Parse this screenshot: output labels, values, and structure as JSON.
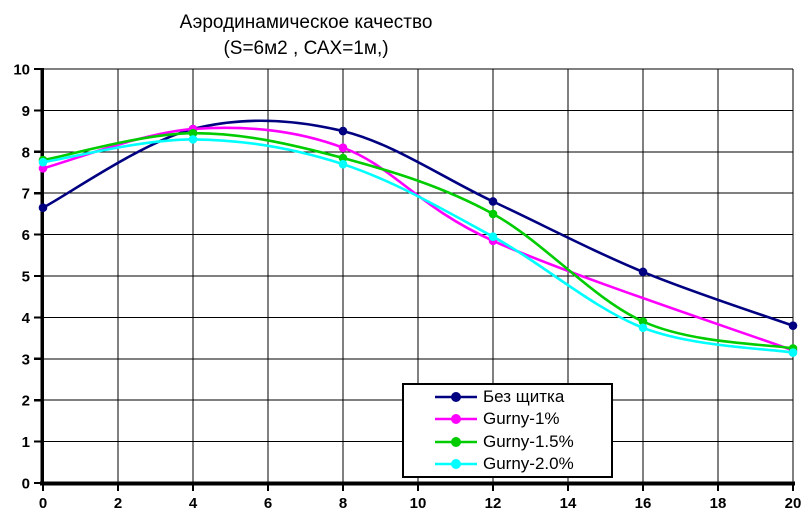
{
  "title": {
    "line1": "Аэродинамическое качество",
    "line2": "(S=6м2 , САХ=1м,)"
  },
  "chart_data": {
    "type": "line",
    "title": "Аэродинамическое качество (S=6м2 , САХ=1м,)",
    "xlabel": "",
    "ylabel": "",
    "xlim": [
      0,
      20
    ],
    "ylim": [
      0,
      10
    ],
    "x_ticks": [
      0,
      2,
      4,
      6,
      8,
      10,
      12,
      14,
      16,
      18,
      20
    ],
    "y_ticks": [
      0,
      1,
      2,
      3,
      4,
      5,
      6,
      7,
      8,
      9,
      10
    ],
    "grid": true,
    "smooth_lines": true,
    "marker": "circle",
    "legend_position": "inside-bottom-right",
    "series": [
      {
        "name": "Без щитка",
        "color": "#000080",
        "x": [
          0,
          4,
          8,
          12,
          16,
          20
        ],
        "y": [
          6.65,
          8.55,
          8.5,
          6.8,
          5.1,
          3.8
        ]
      },
      {
        "name": "Gurny-1%",
        "color": "#FF00FF",
        "x": [
          0,
          4,
          8,
          12,
          20
        ],
        "y": [
          7.6,
          8.55,
          8.1,
          5.85,
          3.2
        ]
      },
      {
        "name": "Gurny-1.5%",
        "color": "#00CC00",
        "x": [
          0,
          4,
          8,
          12,
          16,
          20
        ],
        "y": [
          7.8,
          8.45,
          7.85,
          6.5,
          3.9,
          3.25
        ]
      },
      {
        "name": "Gurny-2.0%",
        "color": "#00FFFF",
        "x": [
          0,
          4,
          8,
          12,
          16,
          20
        ],
        "y": [
          7.75,
          8.3,
          7.7,
          5.95,
          3.75,
          3.15
        ]
      }
    ]
  }
}
